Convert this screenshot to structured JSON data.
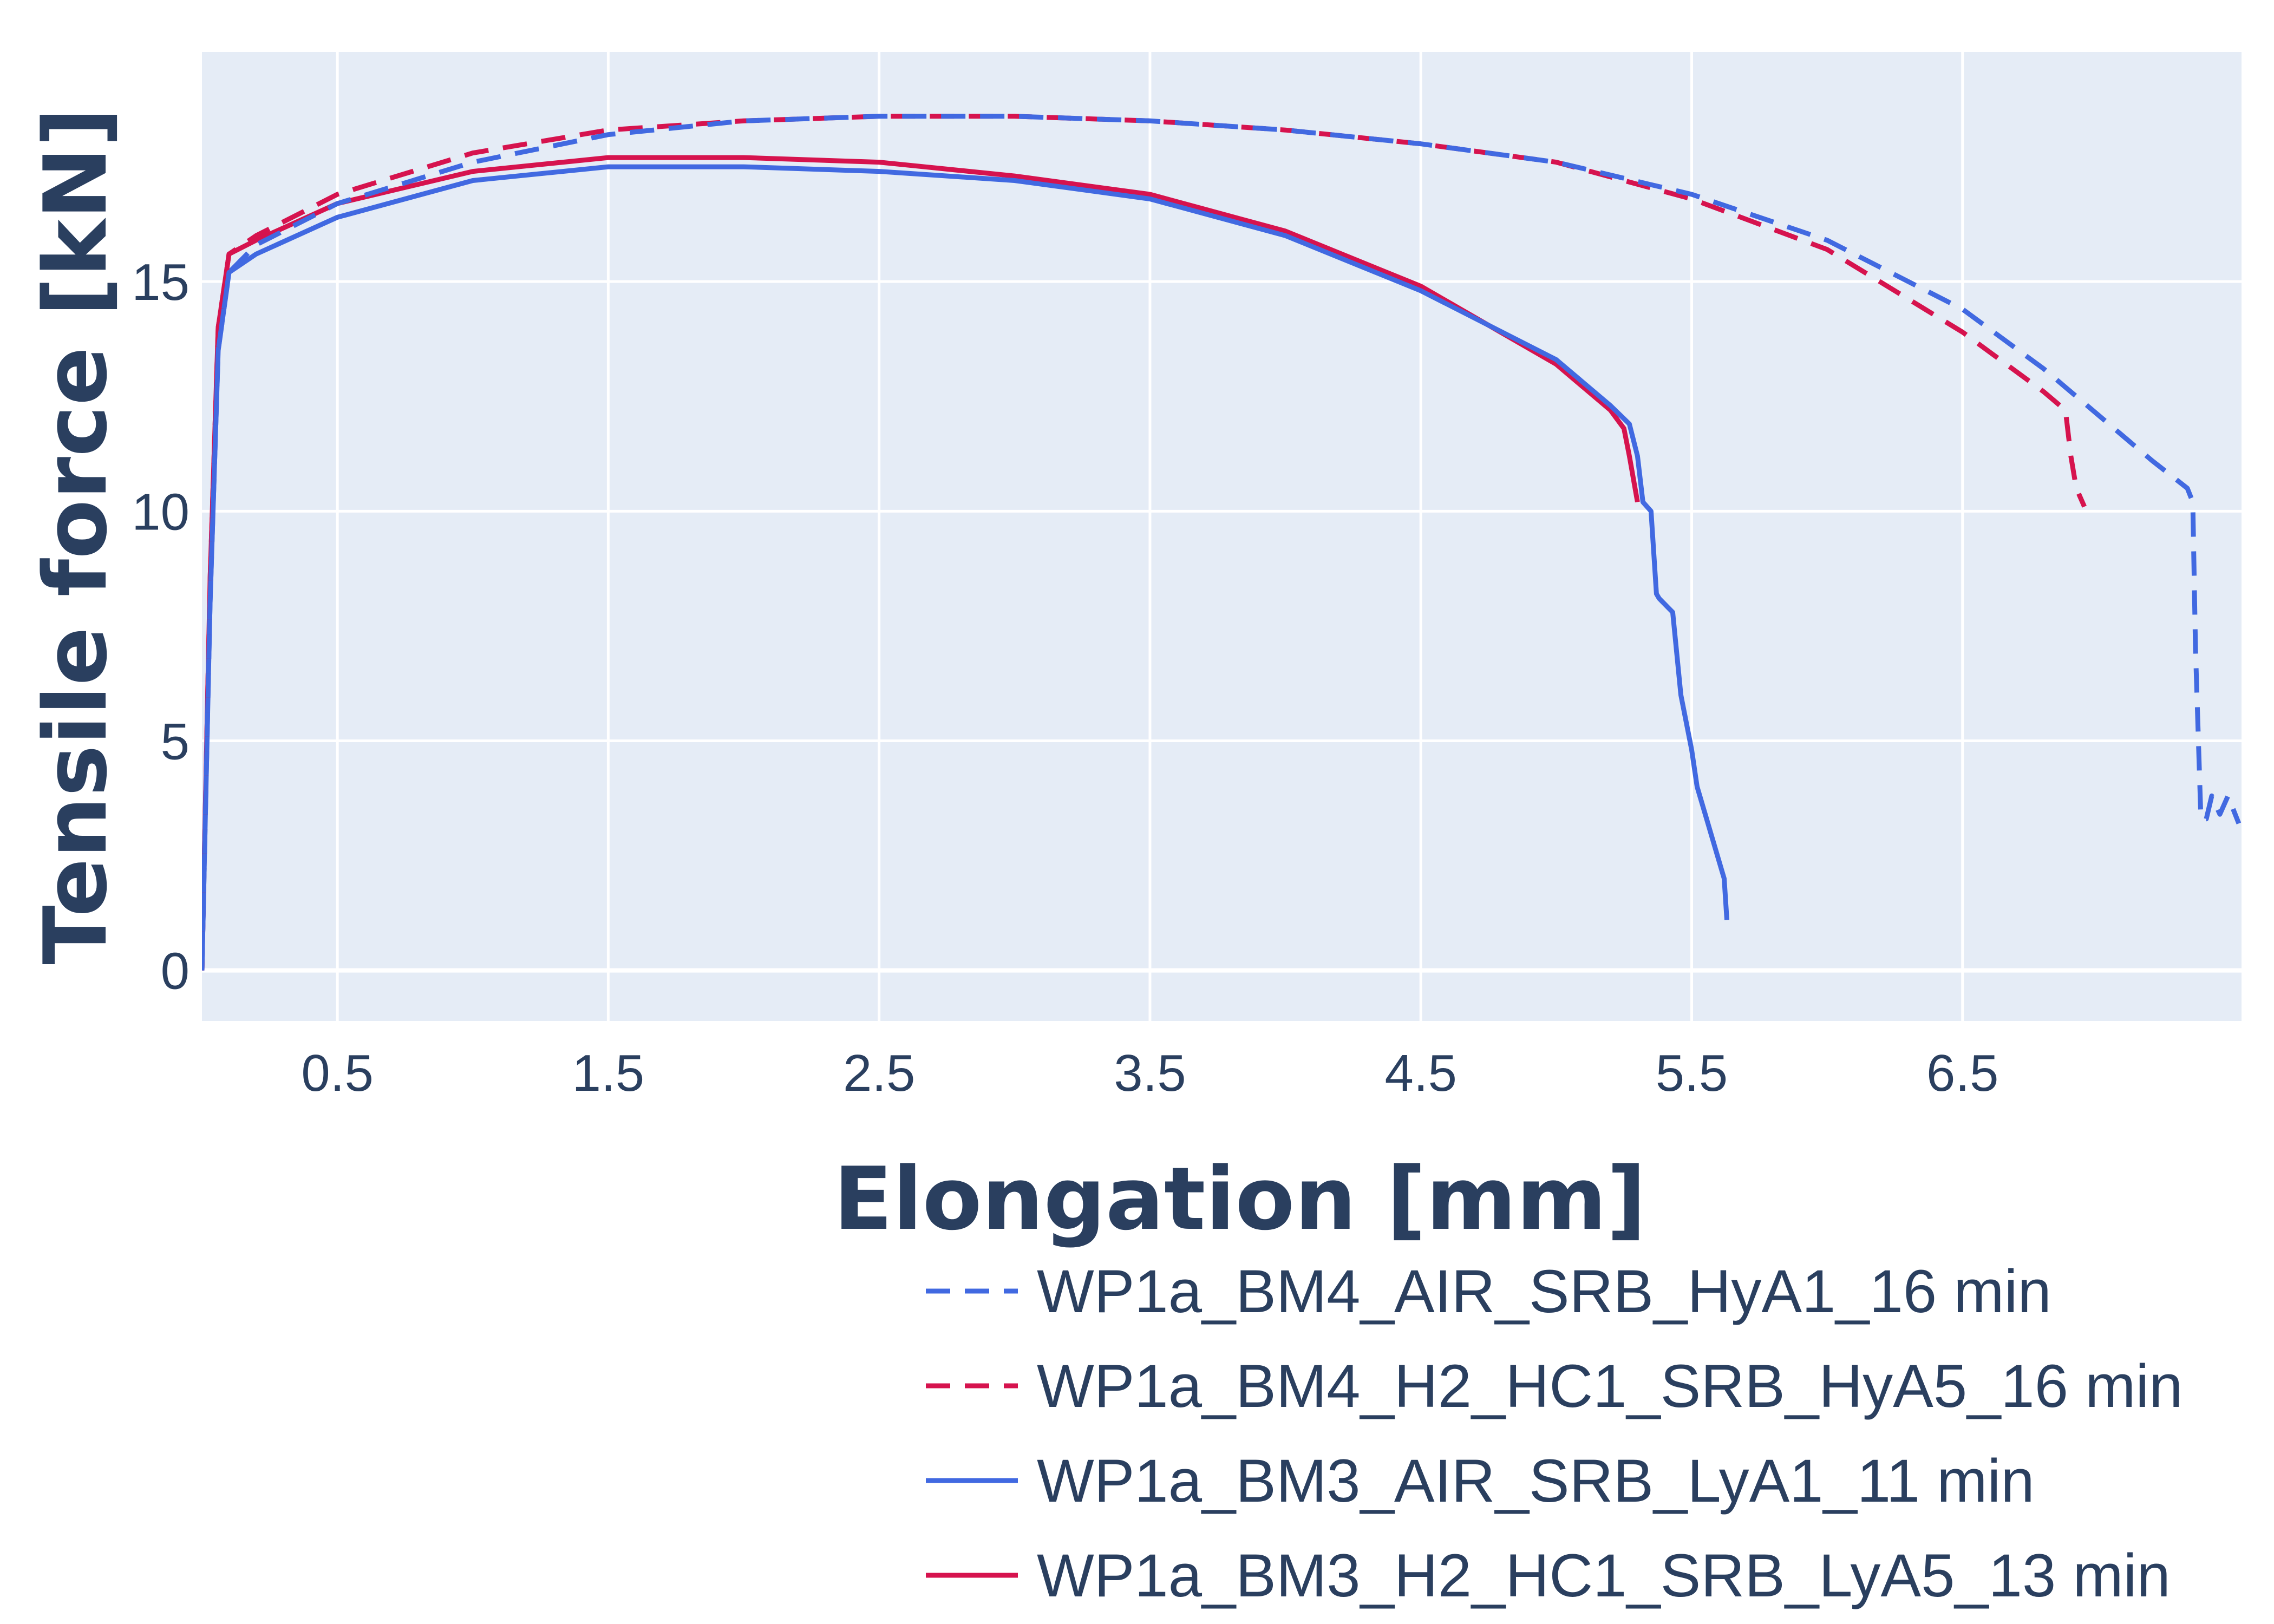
{
  "chart_data": {
    "type": "line",
    "xlabel": "Elongation [mm]",
    "ylabel": "Tensile force [kN]",
    "xlim": [
      0,
      7.53
    ],
    "ylim": [
      -1.1,
      20.0
    ],
    "x_ticks": [
      0.5,
      1.5,
      2.5,
      3.5,
      4.5,
      5.5,
      6.5
    ],
    "x_tick_labels": [
      "0.5",
      "1.5",
      "2.5",
      "3.5",
      "4.5",
      "5.5",
      "6.5"
    ],
    "y_ticks": [
      0,
      5,
      10,
      15
    ],
    "y_tick_labels": [
      "0",
      "5",
      "10",
      "15"
    ],
    "grid": true,
    "plot_background": "#e5ecf6",
    "legend_position": "bottom-right",
    "series": [
      {
        "name": "WP1a_BM4_AIR_SRB_HyA1_16 min",
        "color": "#4169e1",
        "dash": "dash",
        "x": [
          0,
          0.03,
          0.06,
          0.1,
          0.2,
          0.5,
          1.0,
          1.5,
          2.0,
          2.5,
          3.0,
          3.5,
          4.0,
          4.5,
          5.0,
          5.5,
          6.0,
          6.5,
          6.8,
          7.0,
          7.2,
          7.33,
          7.35,
          7.36,
          7.38,
          7.4,
          7.42,
          7.45,
          7.48,
          7.5,
          7.52
        ],
        "y": [
          0,
          8.0,
          13.5,
          15.2,
          15.8,
          16.7,
          17.6,
          18.2,
          18.5,
          18.6,
          18.6,
          18.5,
          18.3,
          18.0,
          17.6,
          16.9,
          15.9,
          14.4,
          13.1,
          12.1,
          11.1,
          10.5,
          10.2,
          7.0,
          3.3,
          3.3,
          3.8,
          3.4,
          3.8,
          3.5,
          3.2
        ]
      },
      {
        "name": "WP1a_BM4_H2_HC1_SRB_HyA5_16 min",
        "color": "#d6134e",
        "dash": "dash",
        "x": [
          0,
          0.03,
          0.06,
          0.1,
          0.2,
          0.5,
          1.0,
          1.5,
          2.0,
          2.5,
          3.0,
          3.5,
          4.0,
          4.5,
          5.0,
          5.5,
          6.0,
          6.5,
          6.8,
          6.88,
          6.9,
          6.92,
          6.95
        ],
        "y": [
          0,
          8.5,
          14.0,
          15.6,
          16.0,
          16.9,
          17.8,
          18.3,
          18.5,
          18.6,
          18.6,
          18.5,
          18.3,
          18.0,
          17.6,
          16.8,
          15.7,
          13.9,
          12.6,
          12.2,
          11.2,
          10.5,
          10.1
        ]
      },
      {
        "name": "WP1a_BM3_AIR_SRB_LyA1_11 min",
        "color": "#4169e1",
        "dash": "solid",
        "x": [
          0,
          0.03,
          0.06,
          0.1,
          0.2,
          0.5,
          1.0,
          1.5,
          2.0,
          2.5,
          3.0,
          3.5,
          4.0,
          4.5,
          5.0,
          5.2,
          5.27,
          5.3,
          5.32,
          5.35,
          5.37,
          5.38,
          5.43,
          5.46,
          5.5,
          5.52,
          5.55,
          5.6,
          5.62,
          5.63
        ],
        "y": [
          0,
          8.0,
          13.5,
          15.2,
          15.6,
          16.4,
          17.2,
          17.5,
          17.5,
          17.4,
          17.2,
          16.8,
          16.0,
          14.8,
          13.3,
          12.3,
          11.9,
          11.2,
          10.2,
          10.0,
          8.2,
          8.1,
          7.8,
          6.0,
          4.8,
          4.0,
          3.4,
          2.4,
          2.0,
          1.1
        ]
      },
      {
        "name": "WP1a_BM3_H2_HC1_SRB_LyA5_13 min",
        "color": "#d6134e",
        "dash": "solid",
        "x": [
          0,
          0.03,
          0.06,
          0.1,
          0.2,
          0.5,
          1.0,
          1.5,
          2.0,
          2.5,
          3.0,
          3.5,
          4.0,
          4.5,
          5.0,
          5.2,
          5.25,
          5.27,
          5.3
        ],
        "y": [
          0,
          8.5,
          14.0,
          15.6,
          15.9,
          16.7,
          17.4,
          17.7,
          17.7,
          17.6,
          17.3,
          16.9,
          16.1,
          14.9,
          13.2,
          12.2,
          11.8,
          11.2,
          10.2
        ]
      }
    ]
  }
}
